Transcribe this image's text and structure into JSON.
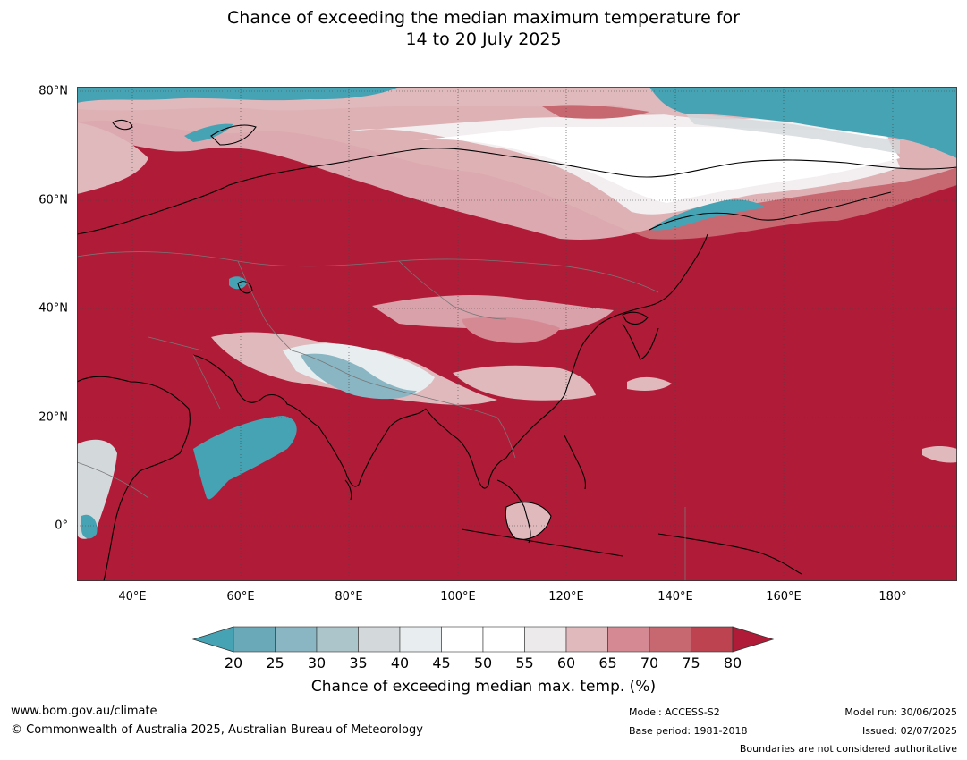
{
  "title": {
    "line1": "Chance of exceeding the median maximum temperature for",
    "line2": "14 to 20 July 2025"
  },
  "map": {
    "lat_labels": [
      "80°N",
      "60°N",
      "40°N",
      "20°N",
      "0°"
    ],
    "lon_labels": [
      "40°E",
      "60°E",
      "80°E",
      "100°E",
      "120°E",
      "140°E",
      "160°E",
      "180°"
    ],
    "extent": {
      "lon_min": 30,
      "lon_max": 192,
      "lat_min": -10,
      "lat_max": 80
    }
  },
  "legend": {
    "ticks": [
      "20",
      "25",
      "30",
      "35",
      "40",
      "45",
      "50",
      "55",
      "60",
      "65",
      "70",
      "75",
      "80"
    ],
    "label": "Chance of exceeding median max. temp. (%)",
    "colors": {
      "below_20": "#46a3b4",
      "20_25": "#6aa9b7",
      "25_30": "#8ab6c4",
      "30_35": "#acc5cb",
      "35_40": "#d3d8db",
      "40_45": "#e8eef0",
      "45_50": "#ffffff",
      "50_55": "#ffffff",
      "55_60": "#eceaea",
      "60_65": "#e0b9bd",
      "65_70": "#d58a93",
      "70_75": "#c76871",
      "75_80": "#bc434f",
      "above_80": "#b01b38"
    }
  },
  "footer": {
    "website": "www.bom.gov.au/climate",
    "copyright": "© Commonwealth of Australia 2025, Australian Bureau of Meteorology",
    "model": "Model: ACCESS-S2",
    "base_period": "Base period: 1981-2018",
    "model_run": "Model run: 30/06/2025",
    "issued": "Issued: 02/07/2025",
    "disclaimer": "Boundaries are not considered authoritative"
  }
}
